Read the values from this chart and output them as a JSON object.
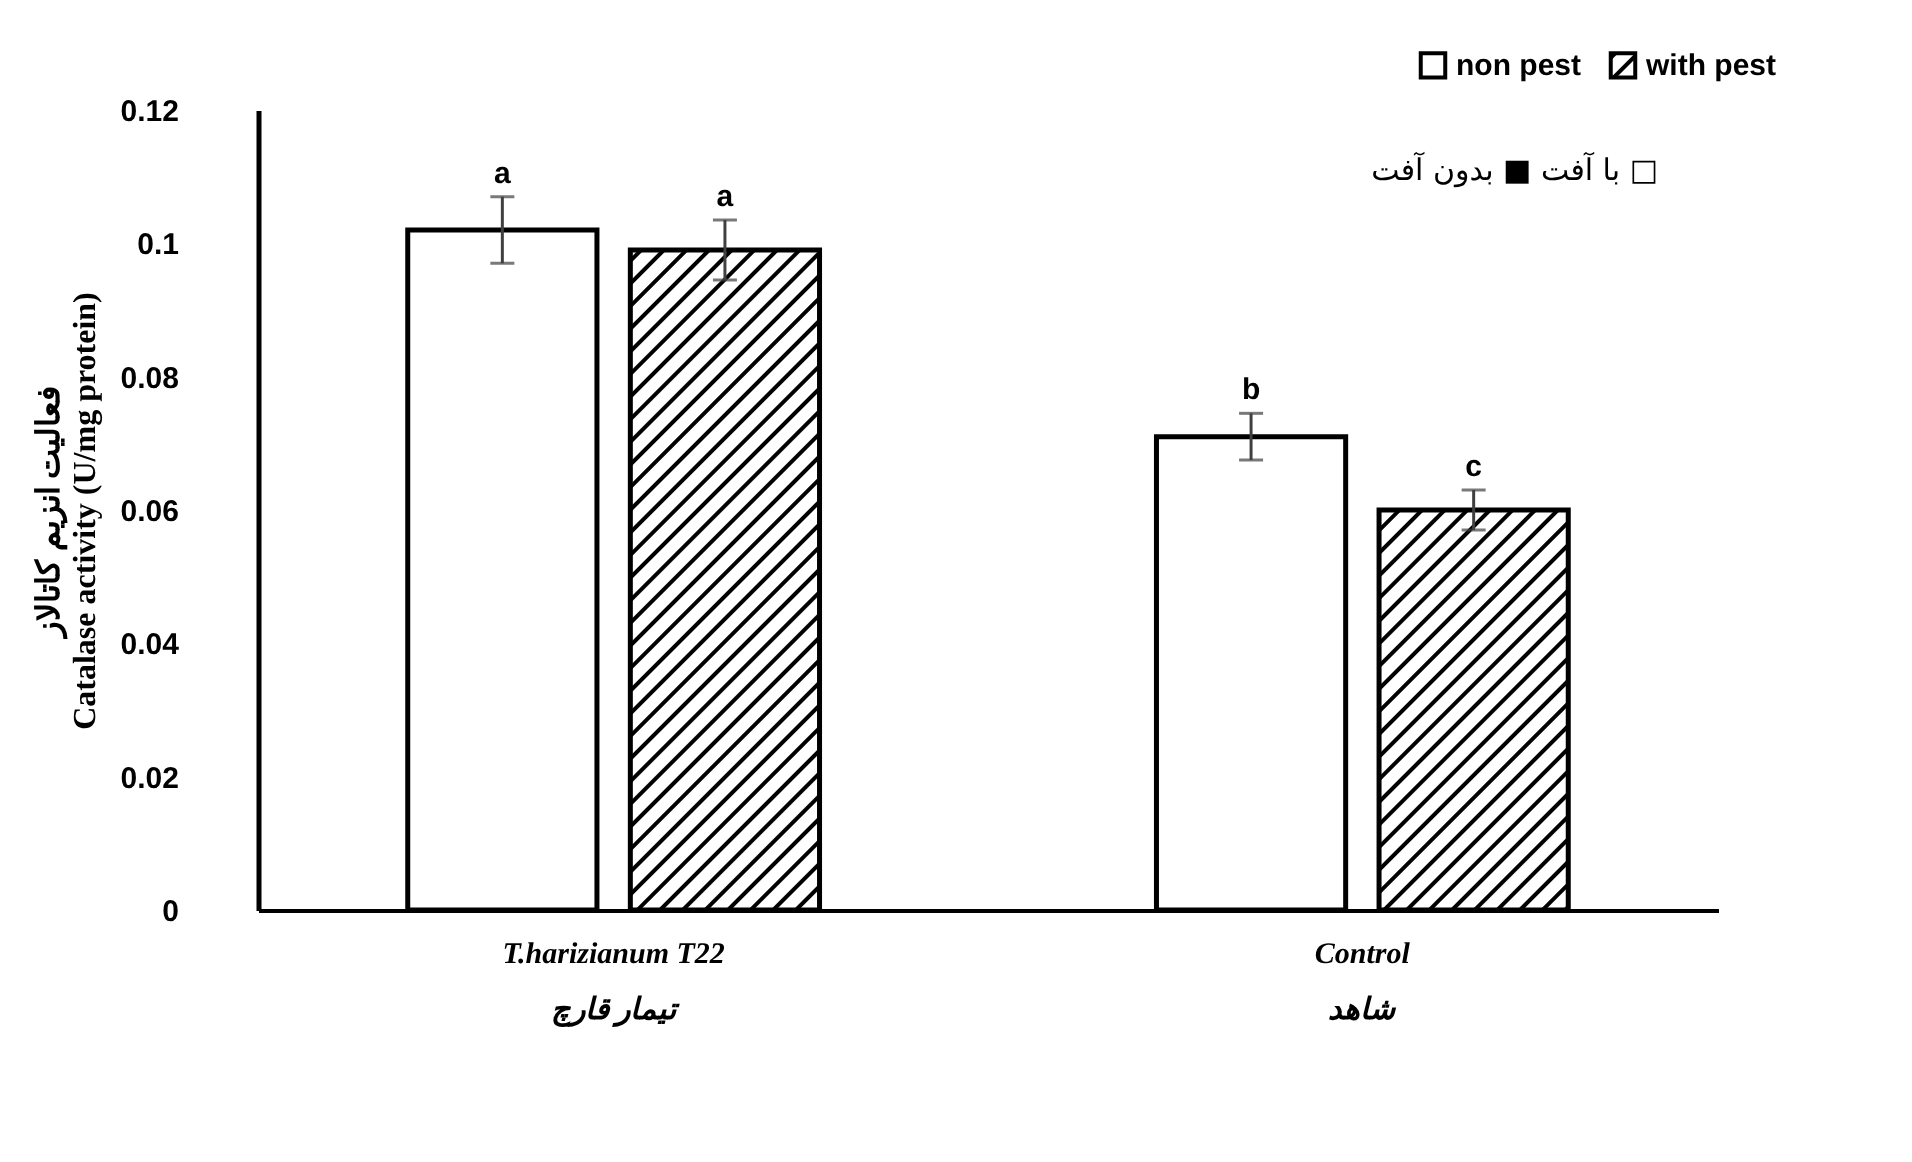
{
  "chart_data": {
    "type": "bar",
    "ylabel": "فعالیت انزیم کاتالاز\nCatalase activity (U/mg protein)",
    "categories": [
      "T.harizianum T22\nتیمار قارچ",
      "Control\nشاهد"
    ],
    "series": [
      {
        "name": "non pest",
        "color": "#ffffff",
        "values": [
          0.102,
          0.071
        ],
        "errors": [
          0.005,
          0.0035
        ],
        "value_labels": [
          "a",
          "b"
        ]
      },
      {
        "name": "with pest",
        "color": "#000000",
        "values": [
          0.099,
          0.06
        ],
        "errors": [
          0.0045,
          0.003
        ],
        "value_labels": [
          "a",
          "c"
        ]
      }
    ],
    "ylim": [
      0,
      0.12
    ],
    "yticks": [
      0,
      0.02,
      0.04,
      0.06,
      0.08,
      0.1,
      0.12
    ],
    "annotations": [
      "با آفت ■ بدون آفت □"
    ],
    "grid": false,
    "legend": "top right"
  }
}
